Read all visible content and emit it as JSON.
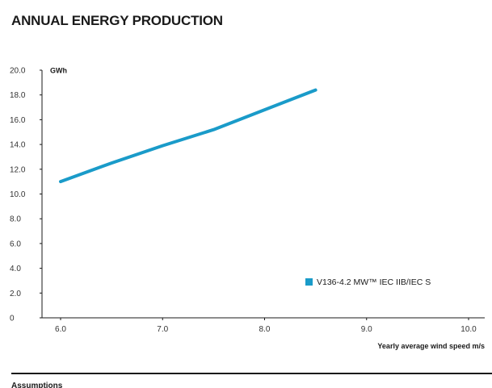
{
  "chart_data": {
    "type": "line",
    "title": "ANNUAL ENERGY PRODUCTION",
    "ylabel": "GWh",
    "xlabel": "Yearly average wind speed m/s",
    "xlim": [
      6.0,
      10.0
    ],
    "ylim": [
      0,
      20.0
    ],
    "x_ticks": [
      "6.0",
      "7.0",
      "8.0",
      "9.0",
      "10.0"
    ],
    "y_ticks": [
      "0",
      "2.0",
      "4.0",
      "6.0",
      "8.0",
      "10.0",
      "12.0",
      "14.0",
      "16.0",
      "18.0",
      "20.0"
    ],
    "grid": false,
    "legend_position": "bottom-right",
    "series": [
      {
        "name": "V136-4.2 MW™ IEC IIB/IEC S",
        "color": "#1a9bc9",
        "x": [
          6.0,
          6.5,
          7.0,
          7.5,
          8.0,
          8.5
        ],
        "y": [
          11.0,
          12.5,
          13.9,
          15.2,
          16.8,
          18.4
        ]
      }
    ]
  },
  "footer": {
    "text": "Assumptions"
  }
}
